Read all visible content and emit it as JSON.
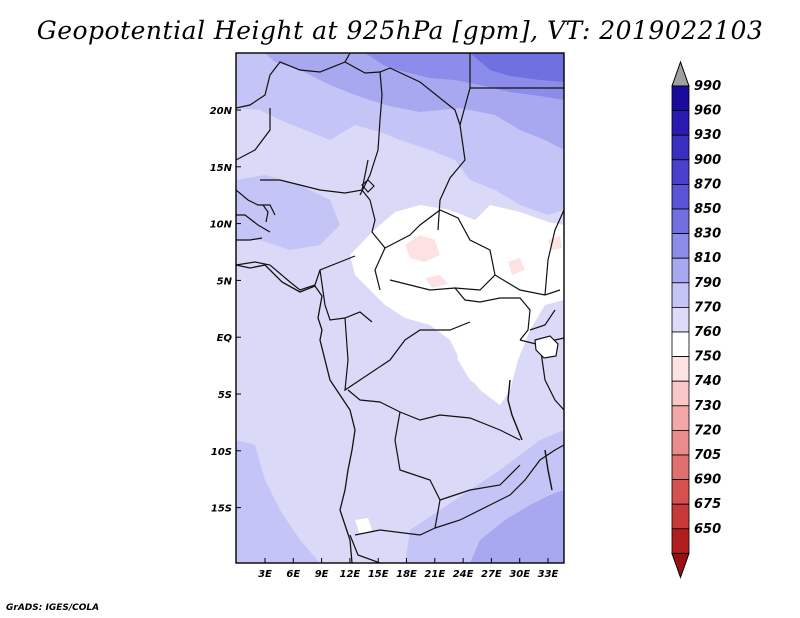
{
  "title": "Geopotential Height at 925hPa [gpm], VT: 2019022103",
  "credit": "GrADS: IGES/COLA",
  "map": {
    "lon_labels": [
      "3E",
      "6E",
      "9E",
      "12E",
      "15E",
      "18E",
      "21E",
      "24E",
      "27E",
      "30E",
      "33E"
    ],
    "lat_labels": [
      "20N",
      "15N",
      "10N",
      "5N",
      "EQ",
      "5S",
      "10S",
      "15S"
    ],
    "base_fill": "#dadaf8"
  },
  "colorbar": {
    "levels": [
      {
        "label": "990",
        "color": "#1a0b9c"
      },
      {
        "label": "960",
        "color": "#2a1ab2"
      },
      {
        "label": "930",
        "color": "#3a2ec0"
      },
      {
        "label": "900",
        "color": "#4a40cc"
      },
      {
        "label": "870",
        "color": "#5a54d6"
      },
      {
        "label": "850",
        "color": "#7070e0"
      },
      {
        "label": "830",
        "color": "#8c8cea"
      },
      {
        "label": "810",
        "color": "#a8a8f0"
      },
      {
        "label": "790",
        "color": "#c4c4f6"
      },
      {
        "label": "770",
        "color": "#dcdcfa"
      },
      {
        "label": "760",
        "color": "#ffffff"
      },
      {
        "label": "750",
        "color": "#fce2e2"
      },
      {
        "label": "740",
        "color": "#f8c8c8"
      },
      {
        "label": "730",
        "color": "#f2a8a8"
      },
      {
        "label": "720",
        "color": "#ea8c8c"
      },
      {
        "label": "705",
        "color": "#e07070"
      },
      {
        "label": "690",
        "color": "#d65050"
      },
      {
        "label": "675",
        "color": "#c83a3a"
      },
      {
        "label": "650",
        "color": "#b21e1e"
      }
    ],
    "top_arrow_color": "#a0a0a0",
    "bottom_arrow_color": "#9a1010"
  }
}
